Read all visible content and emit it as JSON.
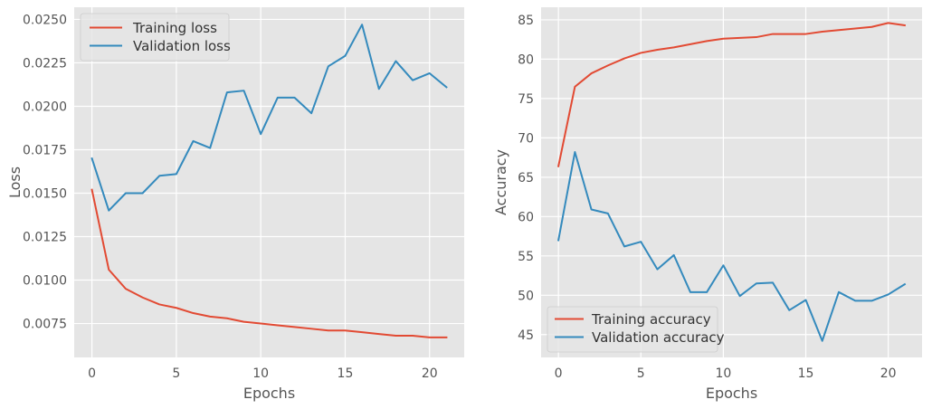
{
  "colors": {
    "plot_background": "#E5E5E5",
    "grid": "#FFFFFF",
    "training": "#E24A33",
    "validation": "#348ABD",
    "text": "#555555"
  },
  "chart_data": [
    {
      "type": "line",
      "title": "",
      "xlabel": "Epochs",
      "ylabel": "Loss",
      "xlim": [
        -1.05,
        22.05
      ],
      "ylim": [
        0.00555,
        0.0257
      ],
      "xticks": [
        0,
        5,
        10,
        15,
        20
      ],
      "xtick_labels": [
        "0",
        "5",
        "10",
        "15",
        "20"
      ],
      "yticks": [
        0.0075,
        0.01,
        0.0125,
        0.015,
        0.0175,
        0.02,
        0.0225,
        0.025
      ],
      "ytick_labels": [
        "0.0075",
        "0.0100",
        "0.0125",
        "0.0150",
        "0.0175",
        "0.0200",
        "0.0225",
        "0.0250"
      ],
      "grid": true,
      "legend_position": "top-left",
      "x": [
        0,
        1,
        2,
        3,
        4,
        5,
        6,
        7,
        8,
        9,
        10,
        11,
        12,
        13,
        14,
        15,
        16,
        17,
        18,
        19,
        20,
        21
      ],
      "series": [
        {
          "name": "Training loss",
          "color": "#E24A33",
          "values": [
            0.0152,
            0.0106,
            0.0095,
            0.009,
            0.0086,
            0.0084,
            0.0081,
            0.0079,
            0.0078,
            0.0076,
            0.0075,
            0.0074,
            0.0073,
            0.0072,
            0.0071,
            0.0071,
            0.007,
            0.0069,
            0.0068,
            0.0068,
            0.0067,
            0.0067
          ]
        },
        {
          "name": "Validation loss",
          "color": "#348ABD",
          "values": [
            0.017,
            0.014,
            0.015,
            0.015,
            0.016,
            0.0161,
            0.018,
            0.0176,
            0.0208,
            0.0209,
            0.0184,
            0.0205,
            0.0205,
            0.0196,
            0.0223,
            0.0229,
            0.0247,
            0.021,
            0.0226,
            0.0215,
            0.0219,
            0.0211
          ]
        }
      ]
    },
    {
      "type": "line",
      "title": "",
      "xlabel": "Epochs",
      "ylabel": "Accuracy",
      "xlim": [
        -1.05,
        22.05
      ],
      "ylim": [
        42.1,
        86.6
      ],
      "xticks": [
        0,
        5,
        10,
        15,
        20
      ],
      "xtick_labels": [
        "0",
        "5",
        "10",
        "15",
        "20"
      ],
      "yticks": [
        45,
        50,
        55,
        60,
        65,
        70,
        75,
        80,
        85
      ],
      "ytick_labels": [
        "45",
        "50",
        "55",
        "60",
        "65",
        "70",
        "75",
        "80",
        "85"
      ],
      "grid": true,
      "legend_position": "bottom-left",
      "x": [
        0,
        1,
        2,
        3,
        4,
        5,
        6,
        7,
        8,
        9,
        10,
        11,
        12,
        13,
        14,
        15,
        16,
        17,
        18,
        19,
        20,
        21
      ],
      "series": [
        {
          "name": "Training accuracy",
          "color": "#E24A33",
          "values": [
            66.4,
            76.5,
            78.2,
            79.2,
            80.1,
            80.8,
            81.2,
            81.5,
            81.9,
            82.3,
            82.6,
            82.7,
            82.8,
            83.2,
            83.2,
            83.2,
            83.5,
            83.7,
            83.9,
            84.1,
            84.6,
            84.3
          ]
        },
        {
          "name": "Validation accuracy",
          "color": "#348ABD",
          "values": [
            57.0,
            68.2,
            60.9,
            60.4,
            56.2,
            56.8,
            53.3,
            55.1,
            50.4,
            50.4,
            53.8,
            49.9,
            51.5,
            51.6,
            48.1,
            49.4,
            44.2,
            50.4,
            49.3,
            49.3,
            50.1,
            51.4
          ]
        }
      ]
    }
  ]
}
